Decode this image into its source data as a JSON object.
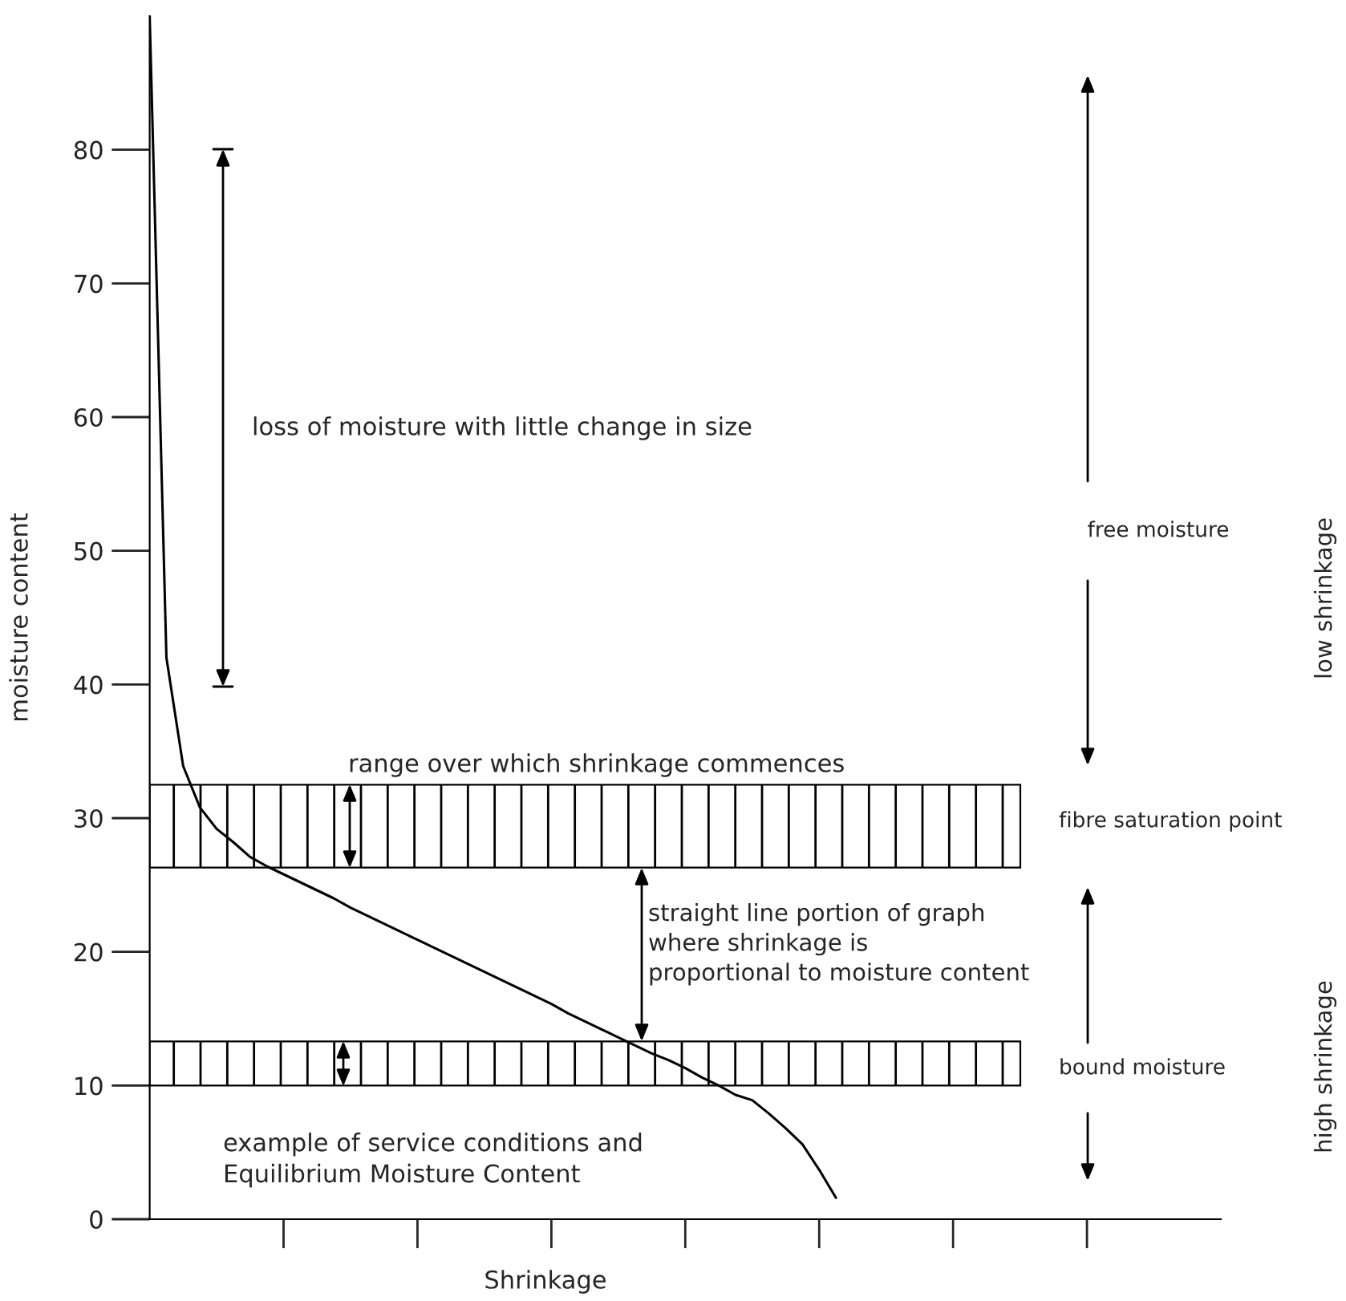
{
  "chart_data": {
    "type": "line",
    "xlabel": "Shrinkage",
    "ylabel": "moisture content",
    "categories": [
      null,
      null,
      null,
      null,
      null,
      null,
      null,
      null,
      null,
      null,
      null,
      null,
      null,
      null,
      null,
      null,
      null,
      null,
      null,
      null,
      null,
      null,
      null,
      null,
      null,
      null,
      null,
      null,
      null,
      null,
      null,
      null,
      null,
      null,
      null,
      null,
      null,
      null,
      null,
      null,
      null,
      null,
      null,
      null,
      null,
      null,
      null,
      null,
      null,
      null,
      null,
      null,
      null,
      null,
      null,
      null,
      null,
      null,
      null,
      null,
      null,
      null,
      null,
      null,
      null
    ],
    "series": [
      {
        "color": "#000000",
        "values": [
          90,
          42,
          33.9,
          30.8,
          29.2,
          28.2,
          27.1,
          26.4,
          25.8,
          25.2,
          24.6,
          24.0,
          23.3,
          22.7,
          22.1,
          21.5,
          20.9,
          20.3,
          19.7,
          19.1,
          18.5,
          17.9,
          17.3,
          16.7,
          16.1,
          15.4,
          14.8,
          14.2,
          13.6,
          13.0,
          12.4,
          11.9,
          11.3,
          10.6,
          10.0,
          9.3,
          8.9,
          7.9,
          6.8,
          5.6,
          3.7,
          1.6,
          null,
          null,
          null,
          null,
          null,
          null,
          null,
          null,
          null,
          null,
          null,
          null,
          null,
          null,
          null,
          null,
          null,
          null,
          null,
          null,
          null,
          null,
          null
        ]
      }
    ],
    "ylim": [
      0,
      90
    ],
    "yticks": [
      0,
      10,
      20,
      30,
      40,
      50,
      60,
      70,
      80
    ],
    "bands": [
      {
        "axis": "y",
        "from": 26.3,
        "to": 32.5
      },
      {
        "axis": "y",
        "from": 10,
        "to": 13.3
      }
    ],
    "annotations": [
      "loss of moisture with little change in size",
      "free moisture",
      "range over which shrinkage commences",
      "fibre saturation point",
      "straight line portion of graph\nwhere shrinkage is\nproportional to moisture content",
      "bound moisture",
      "example of service conditions and\nEquilibrium Moisture Content",
      "low shrinkage",
      "high shrinkage"
    ],
    "grid": false,
    "legend": false,
    "marker": "none",
    "line_style": "solid"
  }
}
